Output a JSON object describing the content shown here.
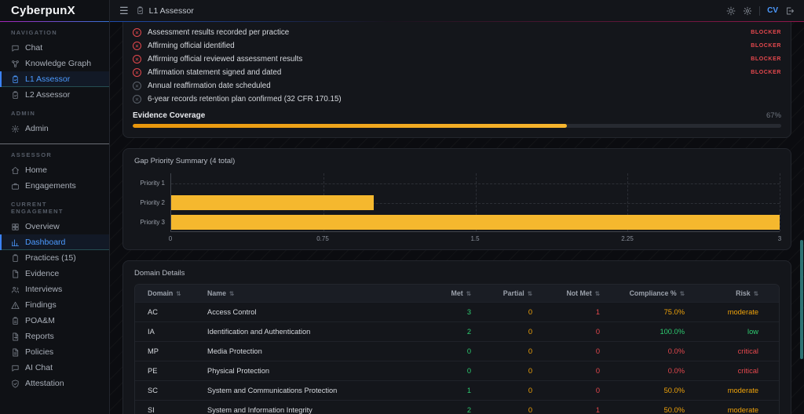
{
  "app": {
    "logo": "CyberpunX"
  },
  "colors": {
    "accent_blue": "#4c9aff",
    "bar_amber": "#f5b82e",
    "green": "#2ecc71",
    "amber": "#f0a30a",
    "red": "#e5484d",
    "scrollbar_teal": "#2d7373"
  },
  "topbar": {
    "title": "L1 Assessor",
    "user_initials": "CV"
  },
  "sidebar": {
    "sections": [
      {
        "label": "NAVIGATION",
        "items": [
          {
            "label": "Chat"
          },
          {
            "label": "Knowledge Graph"
          },
          {
            "label": "L1 Assessor",
            "active": true
          },
          {
            "label": "L2 Assessor"
          }
        ]
      },
      {
        "label": "ADMIN",
        "items": [
          {
            "label": "Admin"
          }
        ]
      },
      {
        "label": "ASSESSOR",
        "items": [
          {
            "label": "Home"
          },
          {
            "label": "Engagements"
          }
        ]
      },
      {
        "label": "CURRENT ENGAGEMENT",
        "items": [
          {
            "label": "Overview"
          },
          {
            "label": "Dashboard",
            "active": true
          },
          {
            "label": "Practices (15)"
          },
          {
            "label": "Evidence"
          },
          {
            "label": "Interviews"
          },
          {
            "label": "Findings"
          },
          {
            "label": "POA&M"
          },
          {
            "label": "Reports"
          },
          {
            "label": "Policies"
          },
          {
            "label": "AI Chat"
          },
          {
            "label": "Attestation"
          }
        ]
      }
    ]
  },
  "checklist": {
    "items": [
      {
        "label": "Assessment results recorded per practice",
        "status": "fail",
        "badge": "BLOCKER"
      },
      {
        "label": "Affirming official identified",
        "status": "fail",
        "badge": "BLOCKER"
      },
      {
        "label": "Affirming official reviewed assessment results",
        "status": "fail",
        "badge": "BLOCKER"
      },
      {
        "label": "Affirmation statement signed and dated",
        "status": "fail",
        "badge": "BLOCKER"
      },
      {
        "label": "Annual reaffirmation date scheduled",
        "status": "pending",
        "badge": ""
      },
      {
        "label": "6-year records retention plan confirmed (32 CFR 170.15)",
        "status": "pending",
        "badge": ""
      }
    ]
  },
  "evidence": {
    "label": "Evidence Coverage",
    "percent": 67,
    "percent_label": "67%"
  },
  "chart_data": {
    "type": "bar",
    "orientation": "horizontal",
    "title": "Gap Priority Summary (4 total)",
    "categories": [
      "Priority 1",
      "Priority 2",
      "Priority 3"
    ],
    "values": [
      0,
      1,
      3
    ],
    "xlim": [
      0,
      3
    ],
    "xticks": [
      "0",
      "0.75",
      "1.5",
      "2.25",
      "3"
    ],
    "xlabel": "",
    "ylabel": "",
    "grid": true,
    "legend": false,
    "bar_color": "#f5b82e"
  },
  "table": {
    "title": "Domain Details",
    "headers": [
      "Domain",
      "Name",
      "Met",
      "Partial",
      "Not Met",
      "Compliance %",
      "Risk"
    ],
    "rows": [
      {
        "domain": "AC",
        "name": "Access Control",
        "met": "3",
        "partial": "0",
        "not_met": "1",
        "compliance": "75.0%",
        "compliance_class": "c-amber",
        "risk": "moderate",
        "risk_class": "c-amber"
      },
      {
        "domain": "IA",
        "name": "Identification and Authentication",
        "met": "2",
        "partial": "0",
        "not_met": "0",
        "compliance": "100.0%",
        "compliance_class": "c-green",
        "risk": "low",
        "risk_class": "c-green"
      },
      {
        "domain": "MP",
        "name": "Media Protection",
        "met": "0",
        "partial": "0",
        "not_met": "0",
        "compliance": "0.0%",
        "compliance_class": "c-red",
        "risk": "critical",
        "risk_class": "c-red"
      },
      {
        "domain": "PE",
        "name": "Physical Protection",
        "met": "0",
        "partial": "0",
        "not_met": "0",
        "compliance": "0.0%",
        "compliance_class": "c-red",
        "risk": "critical",
        "risk_class": "c-red"
      },
      {
        "domain": "SC",
        "name": "System and Communications Protection",
        "met": "1",
        "partial": "0",
        "not_met": "0",
        "compliance": "50.0%",
        "compliance_class": "c-amber",
        "risk": "moderate",
        "risk_class": "c-amber"
      },
      {
        "domain": "SI",
        "name": "System and Information Integrity",
        "met": "2",
        "partial": "0",
        "not_met": "1",
        "compliance": "50.0%",
        "compliance_class": "c-amber",
        "risk": "moderate",
        "risk_class": "c-amber"
      }
    ]
  }
}
